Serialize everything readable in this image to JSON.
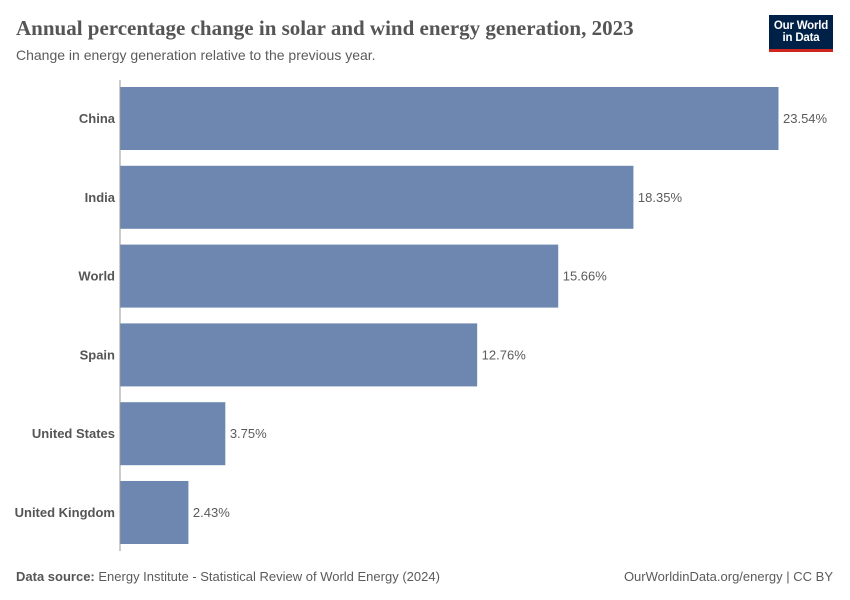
{
  "header": {
    "title": "Annual percentage change in solar and wind energy generation, 2023",
    "subtitle": "Change in energy generation relative to the previous year."
  },
  "logo": {
    "line1": "Our World",
    "line2": "in Data",
    "bg_color": "#002147",
    "accent_color": "#ce261e"
  },
  "chart_data": {
    "type": "bar",
    "orientation": "horizontal",
    "categories": [
      "China",
      "India",
      "World",
      "Spain",
      "United States",
      "United Kingdom"
    ],
    "values": [
      23.54,
      18.35,
      15.66,
      12.76,
      3.75,
      2.43
    ],
    "value_labels": [
      "23.54%",
      "18.35%",
      "15.66%",
      "12.76%",
      "3.75%",
      "2.43%"
    ],
    "unit": "%",
    "bar_color": "#6d87b0",
    "xlim": [
      0,
      23.54
    ],
    "grid": false
  },
  "footer": {
    "source_label": "Data source:",
    "source_text": "Energy Institute - Statistical Review of World Energy (2024)",
    "credit": "OurWorldinData.org/energy | CC BY"
  }
}
